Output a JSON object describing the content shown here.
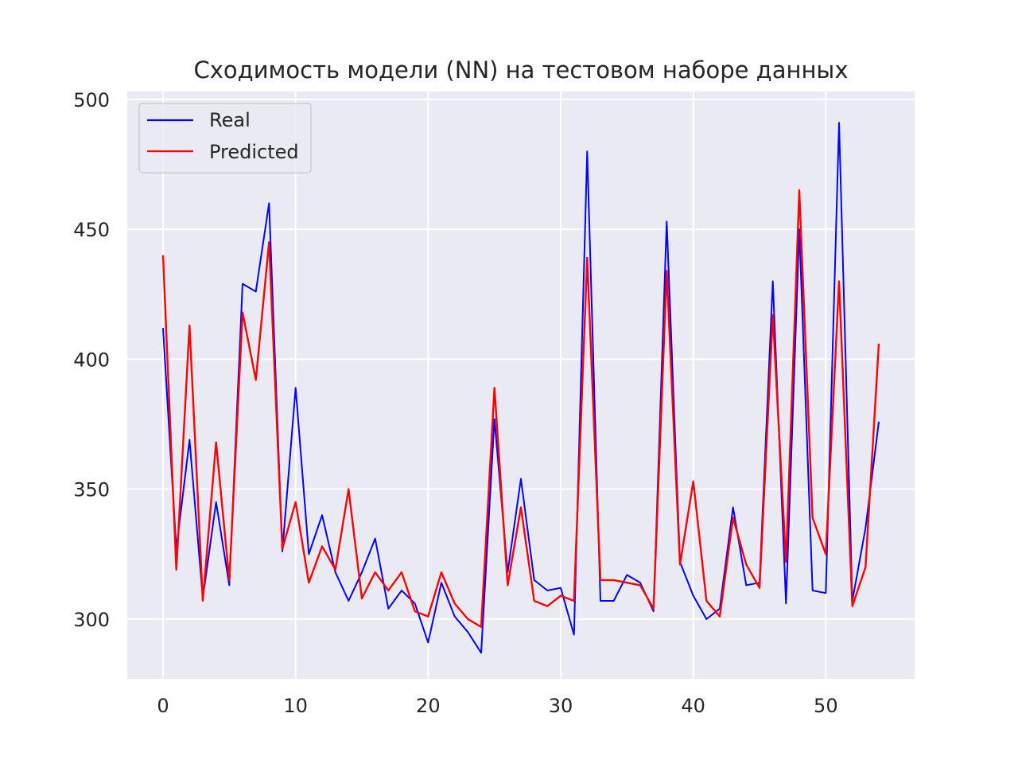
{
  "chart_data": {
    "type": "line",
    "title": "Сходимость модели (NN) на тестовом наборе данных",
    "xlabel": "",
    "ylabel": "",
    "xlim": [
      -2.7,
      56.7
    ],
    "ylim": [
      277,
      503
    ],
    "xticks": [
      0,
      10,
      20,
      30,
      40,
      50
    ],
    "yticks": [
      300,
      350,
      400,
      450,
      500
    ],
    "grid": true,
    "legend_position": "upper-left",
    "colors": {
      "background": "#eaeaf2",
      "grid": "#ffffff",
      "real": "#0000ff",
      "predicted": "#ff0000"
    },
    "x": [
      0,
      1,
      2,
      3,
      4,
      5,
      6,
      7,
      8,
      9,
      10,
      11,
      12,
      13,
      14,
      15,
      16,
      17,
      18,
      19,
      20,
      21,
      22,
      23,
      24,
      25,
      26,
      27,
      28,
      29,
      30,
      31,
      32,
      33,
      34,
      35,
      36,
      37,
      38,
      39,
      40,
      41,
      42,
      43,
      44,
      45,
      46,
      47,
      48,
      49,
      50,
      51,
      52,
      53,
      54
    ],
    "series": [
      {
        "name": "Real",
        "color": "#0000ff",
        "values": [
          412,
          327,
          369,
          308,
          345,
          313,
          429,
          426,
          460,
          326,
          389,
          325,
          340,
          318,
          307,
          318,
          331,
          304,
          311,
          306,
          291,
          314,
          301,
          295,
          287,
          377,
          318,
          354,
          315,
          311,
          312,
          294,
          480,
          307,
          307,
          317,
          314,
          303,
          453,
          322,
          309,
          300,
          304,
          343,
          313,
          314,
          430,
          306,
          450,
          311,
          310,
          491,
          307,
          335,
          376
        ]
      },
      {
        "name": "Predicted",
        "color": "#ff0000",
        "values": [
          440,
          319,
          413,
          307,
          368,
          315,
          418,
          392,
          445,
          327,
          345,
          314,
          328,
          319,
          350,
          308,
          318,
          311,
          318,
          303,
          301,
          318,
          306,
          300,
          297,
          389,
          313,
          343,
          307,
          305,
          309,
          307,
          439,
          315,
          315,
          314,
          313,
          304,
          434,
          321,
          353,
          307,
          301,
          339,
          321,
          312,
          417,
          322,
          465,
          339,
          325,
          430,
          305,
          320,
          406
        ]
      }
    ]
  }
}
